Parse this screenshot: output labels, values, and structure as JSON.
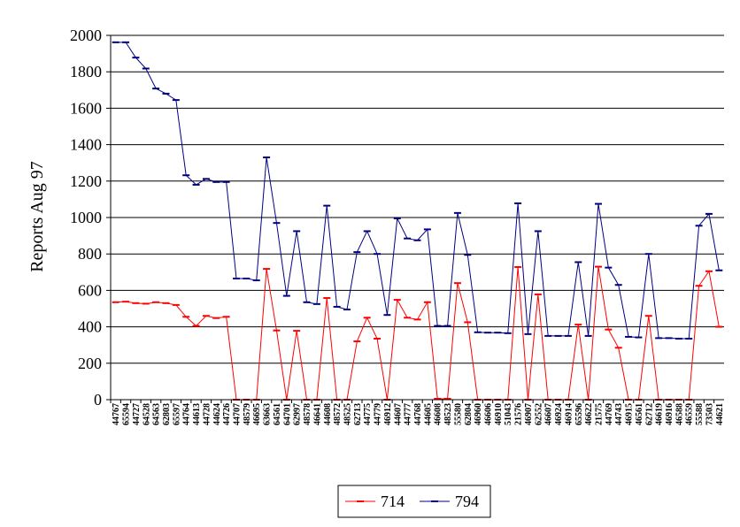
{
  "chart_data": {
    "type": "line",
    "xlabel": "",
    "ylabel": "Reports Aug 97",
    "ylim": [
      0,
      2000
    ],
    "yticks": [
      "0",
      "200",
      "400",
      "600",
      "800",
      "1000",
      "1200",
      "1400",
      "1600",
      "1800",
      "2000"
    ],
    "grid": "horizontal",
    "legend_position": "bottom",
    "categories": [
      "44767",
      "65594",
      "44727",
      "64528",
      "64563",
      "62803",
      "65597",
      "44764",
      "44613",
      "44728",
      "44624",
      "44726",
      "44707",
      "48579",
      "46695",
      "63663",
      "64561",
      "64701",
      "62997",
      "48578",
      "46641",
      "44608",
      "48572",
      "48525",
      "62713",
      "44775",
      "44779",
      "46912",
      "44607",
      "44777",
      "44768",
      "44605",
      "46608",
      "48523",
      "55580",
      "62804",
      "46960",
      "46606",
      "46910",
      "51043",
      "21576",
      "46907",
      "62552",
      "46607",
      "46924",
      "46914",
      "65596",
      "46622",
      "21575",
      "44769",
      "44743",
      "46915",
      "46561",
      "62712",
      "46619",
      "46916",
      "46588",
      "46559",
      "55588",
      "73503",
      "44621"
    ],
    "series": [
      {
        "name": "714",
        "color": "#ff0000",
        "values": [
          535,
          538,
          530,
          527,
          535,
          530,
          520,
          455,
          405,
          460,
          448,
          455,
          0,
          0,
          0,
          718,
          380,
          0,
          378,
          0,
          0,
          558,
          0,
          0,
          320,
          450,
          335,
          0,
          548,
          450,
          440,
          535,
          5,
          5,
          640,
          425,
          0,
          0,
          0,
          0,
          728,
          0,
          578,
          0,
          0,
          0,
          412,
          0,
          730,
          385,
          285,
          0,
          0,
          460,
          0,
          0,
          0,
          0,
          625,
          705,
          400
        ]
      },
      {
        "name": "794",
        "color": "#000080",
        "values": [
          1962,
          1962,
          1878,
          1818,
          1708,
          1680,
          1645,
          1232,
          1180,
          1212,
          1195,
          1195,
          665,
          665,
          655,
          1330,
          970,
          570,
          925,
          535,
          525,
          1065,
          510,
          495,
          810,
          925,
          800,
          465,
          995,
          885,
          875,
          935,
          405,
          405,
          1025,
          795,
          370,
          368,
          368,
          365,
          1078,
          360,
          925,
          350,
          350,
          350,
          755,
          350,
          1075,
          725,
          630,
          345,
          342,
          800,
          338,
          338,
          335,
          335,
          955,
          1020,
          710
        ]
      }
    ]
  }
}
